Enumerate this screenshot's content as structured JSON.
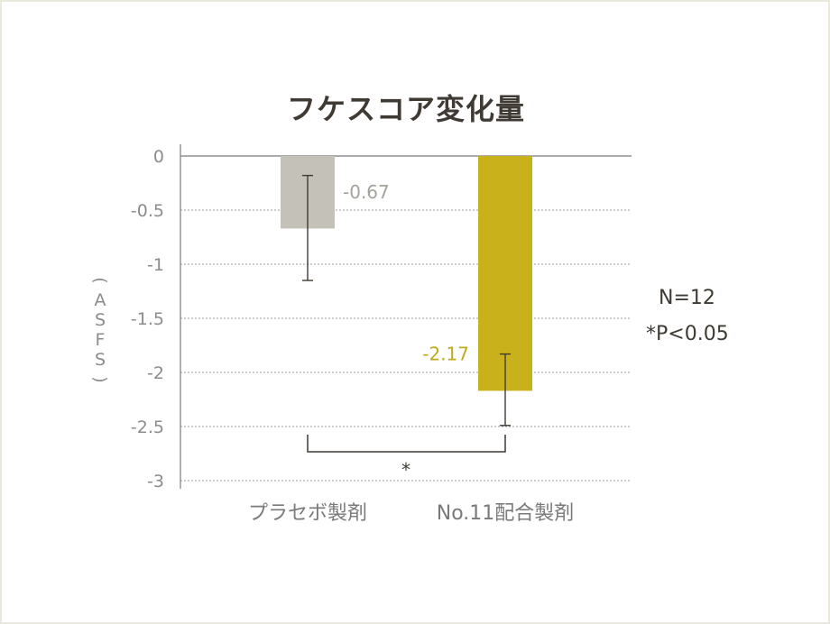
{
  "chart_data": {
    "type": "bar",
    "title": "フケスコア変化量",
    "ylabel": "（ASFS）",
    "ylim": [
      -3,
      0
    ],
    "yticks": [
      0,
      -0.5,
      -1,
      -1.5,
      -2,
      -2.5,
      -3
    ],
    "ytick_labels": [
      "0",
      "-0.5",
      "-1",
      "-1.5",
      "-2",
      "-2.5",
      "-3"
    ],
    "grid": true,
    "categories": [
      "プラセボ製剤",
      "No.11配合製剤"
    ],
    "values": [
      -0.67,
      -2.17
    ],
    "value_labels": [
      "-0.67",
      "-2.17"
    ],
    "error_low": [
      -1.15,
      -2.49
    ],
    "error_high": [
      -0.18,
      -1.83
    ],
    "colors": [
      "#c4c1b9",
      "#c8b11a"
    ],
    "label_colors": [
      "#a6a39c",
      "#c0a91a"
    ],
    "significance_marker": "*"
  },
  "notes": {
    "n": "N=12",
    "p": "*P<0.05"
  }
}
